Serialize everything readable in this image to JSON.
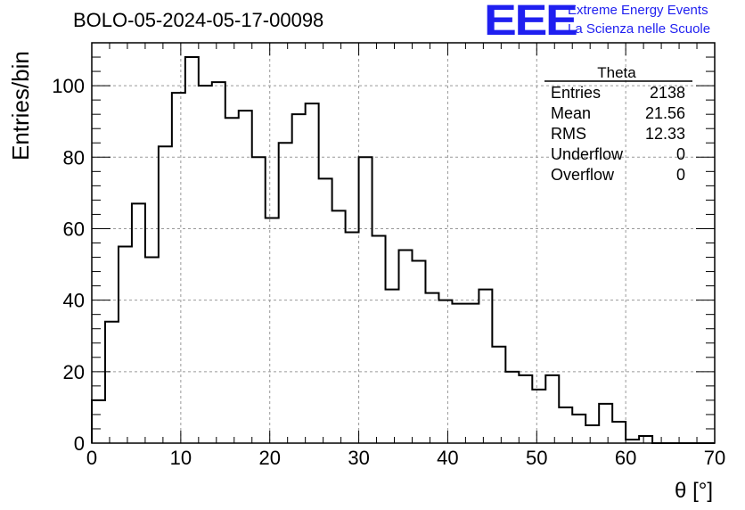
{
  "title": "BOLO-05-2024-05-17-00098",
  "logo": {
    "mark": "EEE",
    "line1": "Extreme Energy Events",
    "line2": "La Scienza nelle Scuole",
    "color": "#1f1ff0"
  },
  "stats": {
    "name": "Theta",
    "rows": [
      {
        "label": "Entries",
        "value": "2138"
      },
      {
        "label": "Mean",
        "value": "21.56"
      },
      {
        "label": "RMS",
        "value": "12.33"
      },
      {
        "label": "Underflow",
        "value": "0"
      },
      {
        "label": "Overflow",
        "value": "0"
      }
    ]
  },
  "chart_data": {
    "type": "bar",
    "style": "step-histogram",
    "xlabel": "θ [°]",
    "ylabel": "Entries/bin",
    "xlim": [
      0,
      70
    ],
    "ylim": [
      0,
      112
    ],
    "bin_width": 1.5,
    "xticks": [
      0,
      10,
      20,
      30,
      40,
      50,
      60,
      70
    ],
    "yticks": [
      0,
      20,
      40,
      60,
      80,
      100
    ],
    "grid": true,
    "values": [
      12,
      34,
      55,
      67,
      52,
      83,
      98,
      108,
      100,
      101,
      91,
      93,
      80,
      63,
      84,
      92,
      95,
      74,
      65,
      59,
      80,
      58,
      43,
      54,
      51,
      42,
      40,
      39,
      39,
      43,
      27,
      20,
      19,
      15,
      19,
      10,
      8,
      5,
      11,
      6,
      1,
      2,
      0,
      0,
      0,
      0,
      0
    ]
  }
}
